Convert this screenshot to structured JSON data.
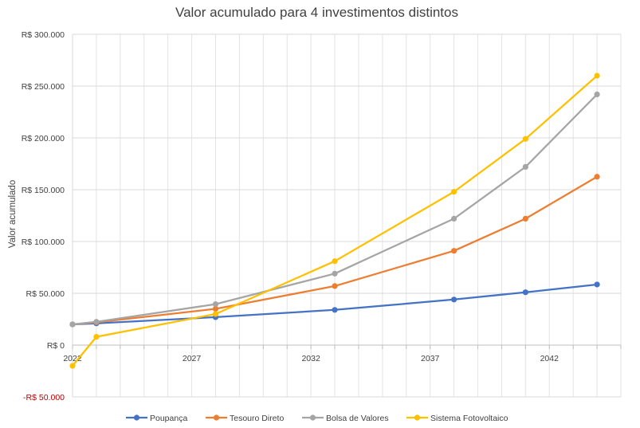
{
  "chart_data": {
    "type": "line",
    "title": "Valor acumulado para 4 investimentos distintos",
    "xlabel": "",
    "ylabel": "Valor acumulado",
    "xlim": [
      2022,
      2045
    ],
    "ylim": [
      -50000,
      300000
    ],
    "x_ticks": [
      2022,
      2027,
      2032,
      2037,
      2042
    ],
    "y_ticks": [
      {
        "value": 300000,
        "label": "R$ 300.000"
      },
      {
        "value": 250000,
        "label": "R$ 250.000"
      },
      {
        "value": 200000,
        "label": "R$ 200.000"
      },
      {
        "value": 150000,
        "label": "R$ 150.000"
      },
      {
        "value": 100000,
        "label": "R$ 100.000"
      },
      {
        "value": 50000,
        "label": "R$ 50.000"
      },
      {
        "value": 0,
        "label": "R$ 0"
      },
      {
        "value": -50000,
        "label": "-R$ 50.000"
      }
    ],
    "grid": true,
    "legend_position": "bottom",
    "series": [
      {
        "name": "Poupança",
        "color": "#4472c4",
        "x": [
          2022,
          2023,
          2028,
          2033,
          2038,
          2041,
          2044
        ],
        "values": [
          20000,
          21000,
          27000,
          34000,
          44000,
          51000,
          58500
        ]
      },
      {
        "name": "Tesouro Direto",
        "color": "#ed7d31",
        "x": [
          2022,
          2023,
          2028,
          2033,
          2038,
          2041,
          2044
        ],
        "values": [
          20000,
          22000,
          35000,
          57000,
          91000,
          122000,
          162500
        ]
      },
      {
        "name": "Bolsa de Valores",
        "color": "#a5a5a5",
        "x": [
          2022,
          2023,
          2028,
          2033,
          2038,
          2041,
          2044
        ],
        "values": [
          20000,
          22500,
          39500,
          69000,
          122000,
          172000,
          242000
        ]
      },
      {
        "name": "Sistema Fotovoltaico",
        "color": "#ffc000",
        "x": [
          2022,
          2023,
          2028,
          2033,
          2038,
          2041,
          2044
        ],
        "values": [
          -20000,
          8000,
          30000,
          81000,
          148000,
          199000,
          260000
        ]
      }
    ]
  }
}
